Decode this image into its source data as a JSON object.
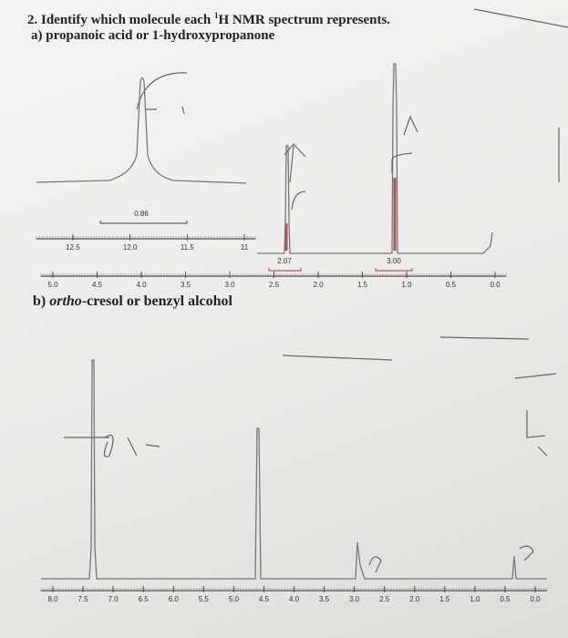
{
  "question": {
    "number": "2.",
    "text_before": "Identify which molecule each ",
    "superscript": "1",
    "text_after": "H NMR spectrum represents."
  },
  "parts": [
    {
      "label": "a)",
      "text": "propanoic acid or 1-hydroxypropanone",
      "inset_axis": [
        "12.5",
        "12.0",
        "11.5",
        "11"
      ],
      "axis": [
        "5.0",
        "4.5",
        "4.0",
        "3.5",
        "3.0",
        "2.5",
        "2.0",
        "1.5",
        "1.0",
        "0.5",
        "0.0"
      ],
      "integrations": [
        "0.86",
        "2.07",
        "3.00"
      ]
    },
    {
      "label": "b)",
      "italic": "ortho",
      "text": "-cresol or benzyl alcohol",
      "axis": [
        "8.0",
        "7.5",
        "7.0",
        "6.5",
        "6.0",
        "5.5",
        "5.0",
        "4.5",
        "4.0",
        "3.5",
        "3.0",
        "2.5",
        "2.0",
        "1.5",
        "1.0",
        "0.5",
        "0.0"
      ]
    }
  ]
}
